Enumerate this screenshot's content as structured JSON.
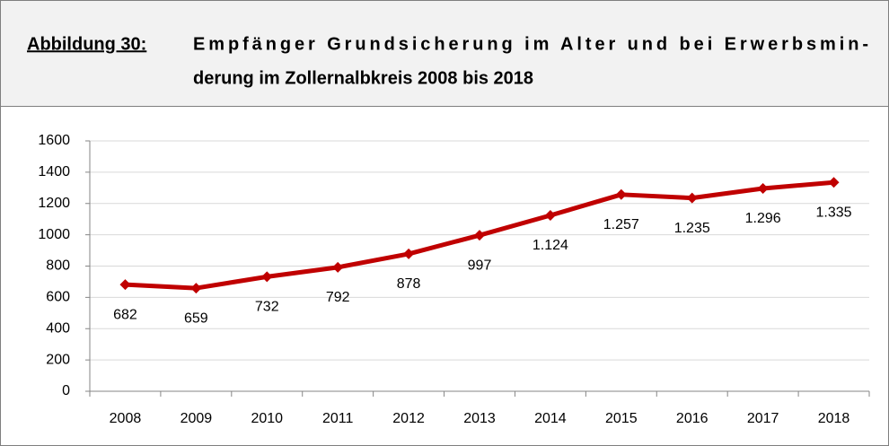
{
  "chart_data": {
    "type": "line",
    "figure_label": "Abbildung 30:",
    "title_lines": [
      "Empfänger Grundsicherung im Alter und bei Erwerbsmin-",
      "derung im Zollernalbkreis 2008 bis 2018"
    ],
    "categories": [
      "2008",
      "2009",
      "2010",
      "2011",
      "2012",
      "2013",
      "2014",
      "2015",
      "2016",
      "2017",
      "2018"
    ],
    "series": [
      {
        "color": "#c00000",
        "values": [
          682,
          659,
          732,
          792,
          878,
          997,
          1124,
          1257,
          1235,
          1296,
          1335
        ],
        "value_labels": [
          "682",
          "659",
          "732",
          "792",
          "878",
          "997",
          "1.124",
          "1.257",
          "1.235",
          "1.296",
          "1.335"
        ]
      }
    ],
    "ylim": [
      0,
      1600
    ],
    "yticks": [
      0,
      200,
      400,
      600,
      800,
      1000,
      1200,
      1400,
      1600
    ],
    "grid": true
  }
}
